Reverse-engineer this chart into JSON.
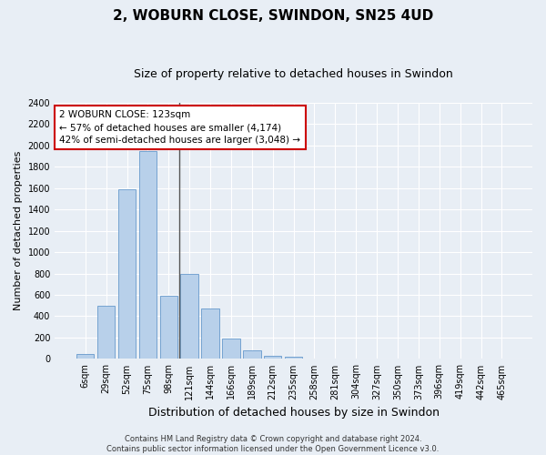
{
  "title": "2, WOBURN CLOSE, SWINDON, SN25 4UD",
  "subtitle": "Size of property relative to detached houses in Swindon",
  "xlabel": "Distribution of detached houses by size in Swindon",
  "ylabel": "Number of detached properties",
  "categories": [
    "6sqm",
    "29sqm",
    "52sqm",
    "75sqm",
    "98sqm",
    "121sqm",
    "144sqm",
    "166sqm",
    "189sqm",
    "212sqm",
    "235sqm",
    "258sqm",
    "281sqm",
    "304sqm",
    "327sqm",
    "350sqm",
    "373sqm",
    "396sqm",
    "419sqm",
    "442sqm",
    "465sqm"
  ],
  "values": [
    50,
    500,
    1590,
    1950,
    590,
    800,
    475,
    195,
    80,
    28,
    20,
    0,
    0,
    0,
    0,
    0,
    0,
    0,
    0,
    0,
    0
  ],
  "bar_color": "#b8d0ea",
  "bar_edge_color": "#6699cc",
  "annotation_text": "2 WOBURN CLOSE: 123sqm\n← 57% of detached houses are smaller (4,174)\n42% of semi-detached houses are larger (3,048) →",
  "annotation_box_color": "#ffffff",
  "annotation_box_edge": "#cc0000",
  "footer_line1": "Contains HM Land Registry data © Crown copyright and database right 2024.",
  "footer_line2": "Contains public sector information licensed under the Open Government Licence v3.0.",
  "ylim": [
    0,
    2400
  ],
  "yticks": [
    0,
    200,
    400,
    600,
    800,
    1000,
    1200,
    1400,
    1600,
    1800,
    2000,
    2200,
    2400
  ],
  "background_color": "#e8eef5",
  "plot_bg_color": "#e8eef5",
  "grid_color": "#ffffff",
  "title_fontsize": 11,
  "subtitle_fontsize": 9,
  "ylabel_fontsize": 8,
  "xlabel_fontsize": 9,
  "tick_fontsize": 7,
  "annotation_fontsize": 7.5,
  "footer_fontsize": 6
}
